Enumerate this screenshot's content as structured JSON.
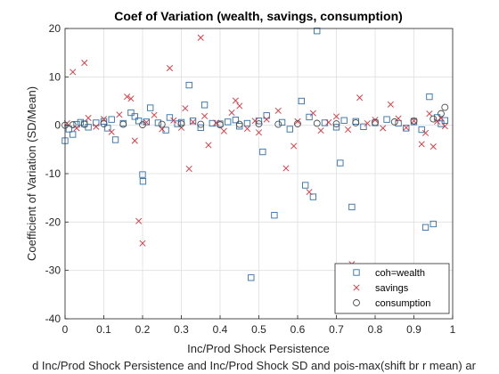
{
  "chart_data": {
    "type": "scatter",
    "title": "Coef of Variation (wealth, savings, consumption)",
    "xlabel": "Inc/Prod Shock Persistence",
    "ylabel": "Coefficient of Variation (SD/Mean)",
    "caption": "d Inc/Prod Shock Persistence and Inc/Prod Shock SD and pois-max(shift br r mean) ar",
    "xlim": [
      0,
      1
    ],
    "ylim": [
      -40,
      20
    ],
    "xticks": [
      0,
      0.1,
      0.2,
      0.3,
      0.4,
      0.5,
      0.6,
      0.7,
      0.8,
      0.9,
      1
    ],
    "xtick_labels": [
      "0",
      "0.1",
      "0.2",
      "0.3",
      "0.4",
      "0.5",
      "0.6",
      "0.7",
      "0.8",
      "0.9",
      "1"
    ],
    "yticks": [
      -40,
      -30,
      -20,
      -10,
      0,
      10,
      20
    ],
    "ytick_labels": [
      "-40",
      "-30",
      "-20",
      "-10",
      "0",
      "10",
      "20"
    ],
    "grid": true,
    "legend_position": "bottom-right",
    "series": [
      {
        "name": "coh=wealth",
        "marker": "square",
        "color": "#2f6fa8",
        "points": [
          [
            0.0,
            -3.2
          ],
          [
            0.01,
            -0.8
          ],
          [
            0.02,
            -1.9
          ],
          [
            0.03,
            0.2
          ],
          [
            0.04,
            0.6
          ],
          [
            0.05,
            0.3
          ],
          [
            0.06,
            -0.4
          ],
          [
            0.08,
            0.5
          ],
          [
            0.1,
            0.8
          ],
          [
            0.11,
            -0.6
          ],
          [
            0.12,
            1.2
          ],
          [
            0.13,
            -3.0
          ],
          [
            0.15,
            0.4
          ],
          [
            0.17,
            2.6
          ],
          [
            0.18,
            1.8
          ],
          [
            0.19,
            0.9
          ],
          [
            0.2,
            -10.2
          ],
          [
            0.201,
            -11.6
          ],
          [
            0.21,
            0.7
          ],
          [
            0.22,
            3.6
          ],
          [
            0.24,
            0.5
          ],
          [
            0.26,
            -1.0
          ],
          [
            0.27,
            1.6
          ],
          [
            0.29,
            0.3
          ],
          [
            0.3,
            0.6
          ],
          [
            0.32,
            8.3
          ],
          [
            0.33,
            0.9
          ],
          [
            0.35,
            -0.5
          ],
          [
            0.36,
            4.2
          ],
          [
            0.38,
            0.4
          ],
          [
            0.4,
            0.3
          ],
          [
            0.42,
            0.7
          ],
          [
            0.44,
            1.1
          ],
          [
            0.45,
            -0.2
          ],
          [
            0.47,
            0.4
          ],
          [
            0.48,
            -31.5
          ],
          [
            0.5,
            0.9
          ],
          [
            0.51,
            -5.5
          ],
          [
            0.52,
            2.0
          ],
          [
            0.54,
            -18.6
          ],
          [
            0.56,
            0.6
          ],
          [
            0.58,
            -0.8
          ],
          [
            0.61,
            5.0
          ],
          [
            0.62,
            -12.4
          ],
          [
            0.63,
            1.7
          ],
          [
            0.64,
            -14.8
          ],
          [
            0.65,
            19.5
          ],
          [
            0.67,
            0.5
          ],
          [
            0.7,
            -0.4
          ],
          [
            0.71,
            -7.8
          ],
          [
            0.72,
            1.0
          ],
          [
            0.74,
            -16.9
          ],
          [
            0.75,
            0.8
          ],
          [
            0.77,
            -0.3
          ],
          [
            0.8,
            0.5
          ],
          [
            0.83,
            1.2
          ],
          [
            0.86,
            0.4
          ],
          [
            0.88,
            -0.6
          ],
          [
            0.9,
            0.7
          ],
          [
            0.92,
            -0.9
          ],
          [
            0.93,
            -21.1
          ],
          [
            0.94,
            5.9
          ],
          [
            0.95,
            -20.4
          ],
          [
            0.96,
            1.6
          ],
          [
            0.97,
            0.3
          ],
          [
            0.98,
            1.0
          ]
        ]
      },
      {
        "name": "savings",
        "marker": "x",
        "color": "#e0303a",
        "points": [
          [
            0.005,
            0.4
          ],
          [
            0.02,
            11.0
          ],
          [
            0.03,
            -0.6
          ],
          [
            0.05,
            12.9
          ],
          [
            0.06,
            1.5
          ],
          [
            0.08,
            -0.3
          ],
          [
            0.1,
            1.3
          ],
          [
            0.12,
            -1.4
          ],
          [
            0.14,
            2.2
          ],
          [
            0.16,
            5.9
          ],
          [
            0.17,
            5.5
          ],
          [
            0.18,
            -3.2
          ],
          [
            0.19,
            -19.8
          ],
          [
            0.2,
            -24.4
          ],
          [
            0.21,
            0.6
          ],
          [
            0.23,
            2.1
          ],
          [
            0.25,
            -0.8
          ],
          [
            0.27,
            11.8
          ],
          [
            0.28,
            1.0
          ],
          [
            0.3,
            -0.5
          ],
          [
            0.31,
            3.5
          ],
          [
            0.32,
            -9.0
          ],
          [
            0.33,
            0.7
          ],
          [
            0.35,
            18.1
          ],
          [
            0.36,
            1.9
          ],
          [
            0.37,
            -4.1
          ],
          [
            0.39,
            0.5
          ],
          [
            0.41,
            -1.2
          ],
          [
            0.43,
            2.6
          ],
          [
            0.44,
            5.1
          ],
          [
            0.45,
            4.0
          ],
          [
            0.47,
            -0.7
          ],
          [
            0.49,
            0.9
          ],
          [
            0.5,
            -1.5
          ],
          [
            0.52,
            1.2
          ],
          [
            0.55,
            3.0
          ],
          [
            0.57,
            -8.9
          ],
          [
            0.59,
            -4.3
          ],
          [
            0.6,
            0.8
          ],
          [
            0.63,
            -13.8
          ],
          [
            0.64,
            2.5
          ],
          [
            0.66,
            -1.1
          ],
          [
            0.68,
            0.6
          ],
          [
            0.7,
            1.8
          ],
          [
            0.73,
            -0.9
          ],
          [
            0.74,
            -28.7
          ],
          [
            0.76,
            5.7
          ],
          [
            0.78,
            0.4
          ],
          [
            0.8,
            1.1
          ],
          [
            0.82,
            -0.6
          ],
          [
            0.84,
            4.3
          ],
          [
            0.86,
            1.4
          ],
          [
            0.88,
            -0.5
          ],
          [
            0.9,
            0.9
          ],
          [
            0.92,
            -3.9
          ],
          [
            0.93,
            -1.6
          ],
          [
            0.94,
            2.4
          ],
          [
            0.95,
            -4.4
          ],
          [
            0.96,
            0.8
          ],
          [
            0.97,
            1.5
          ],
          [
            0.98,
            -0.2
          ]
        ]
      },
      {
        "name": "consumption",
        "marker": "circle",
        "color": "#4d4d4d",
        "points": [
          [
            0.0,
            0.0
          ],
          [
            0.02,
            0.1
          ],
          [
            0.05,
            0.2
          ],
          [
            0.1,
            0.3
          ],
          [
            0.15,
            0.2
          ],
          [
            0.2,
            0.1
          ],
          [
            0.25,
            0.2
          ],
          [
            0.3,
            0.3
          ],
          [
            0.35,
            0.2
          ],
          [
            0.4,
            0.1
          ],
          [
            0.45,
            0.2
          ],
          [
            0.5,
            0.3
          ],
          [
            0.55,
            0.2
          ],
          [
            0.6,
            0.3
          ],
          [
            0.65,
            0.4
          ],
          [
            0.7,
            0.3
          ],
          [
            0.75,
            0.5
          ],
          [
            0.8,
            0.6
          ],
          [
            0.85,
            0.7
          ],
          [
            0.9,
            0.9
          ],
          [
            0.95,
            1.3
          ],
          [
            0.97,
            2.4
          ],
          [
            0.98,
            3.7
          ]
        ]
      }
    ]
  }
}
